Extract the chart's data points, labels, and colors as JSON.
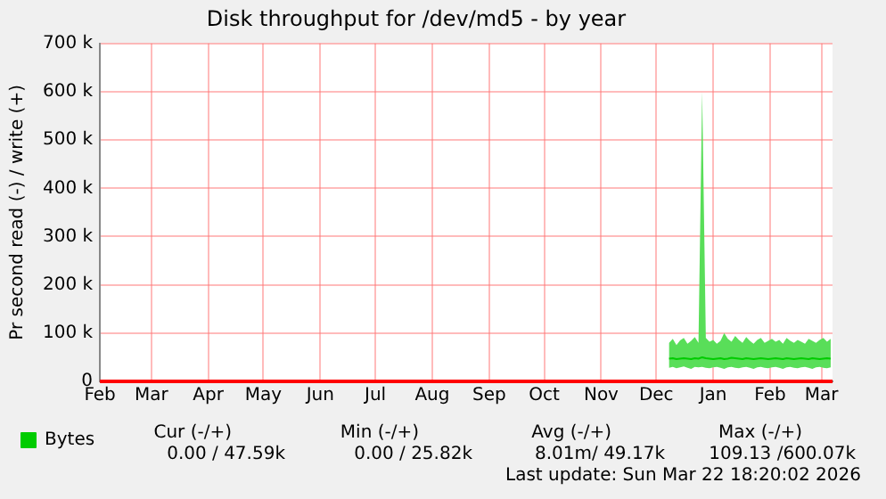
{
  "chart_data": {
    "type": "line",
    "title": "Disk throughput for /dev/md5 - by year",
    "ylabel": "Pr second read (-) / write (+)",
    "xlim": [
      "2025-02-01",
      "2026-03-07"
    ],
    "xticks": [
      {
        "value": "2025-02-01",
        "label": "Feb"
      },
      {
        "value": "2025-03-01",
        "label": "Mar"
      },
      {
        "value": "2025-04-01",
        "label": "Apr"
      },
      {
        "value": "2025-05-01",
        "label": "May"
      },
      {
        "value": "2025-06-01",
        "label": "Jun"
      },
      {
        "value": "2025-07-01",
        "label": "Jul"
      },
      {
        "value": "2025-08-01",
        "label": "Aug"
      },
      {
        "value": "2025-09-01",
        "label": "Sep"
      },
      {
        "value": "2025-10-01",
        "label": "Oct"
      },
      {
        "value": "2025-11-01",
        "label": "Nov"
      },
      {
        "value": "2025-12-01",
        "label": "Dec"
      },
      {
        "value": "2026-01-01",
        "label": "Jan"
      },
      {
        "value": "2026-02-01",
        "label": "Feb"
      },
      {
        "value": "2026-03-01",
        "label": "Mar"
      }
    ],
    "ylim": [
      0,
      700000
    ],
    "yticks": [
      {
        "value": 0,
        "label": "0"
      },
      {
        "value": 100000,
        "label": "100 k"
      },
      {
        "value": 200000,
        "label": "200 k"
      },
      {
        "value": 300000,
        "label": "300 k"
      },
      {
        "value": 400000,
        "label": "400 k"
      },
      {
        "value": 500000,
        "label": "500 k"
      },
      {
        "value": 600000,
        "label": "600 k"
      },
      {
        "value": 700000,
        "label": "700 k"
      }
    ],
    "grid": true,
    "legend": "bottom",
    "marker": "none",
    "line_style": "solid",
    "ref_lines": [
      {
        "axis": "y",
        "value": 0,
        "color": "#ff0000"
      }
    ],
    "series": [
      {
        "name": "Bytes",
        "color": "#00cc00",
        "x": [
          "2025-12-08",
          "2025-12-10",
          "2025-12-12",
          "2025-12-14",
          "2025-12-16",
          "2025-12-18",
          "2025-12-20",
          "2025-12-22",
          "2025-12-24",
          "2025-12-26",
          "2025-12-28",
          "2025-12-30",
          "2026-01-01",
          "2026-01-03",
          "2026-01-05",
          "2026-01-07",
          "2026-01-09",
          "2026-01-11",
          "2026-01-13",
          "2026-01-15",
          "2026-01-17",
          "2026-01-19",
          "2026-01-21",
          "2026-01-23",
          "2026-01-25",
          "2026-01-27",
          "2026-01-29",
          "2026-01-31",
          "2026-02-02",
          "2026-02-04",
          "2026-02-06",
          "2026-02-08",
          "2026-02-10",
          "2026-02-12",
          "2026-02-14",
          "2026-02-16",
          "2026-02-18",
          "2026-02-20",
          "2026-02-22",
          "2026-02-24",
          "2026-02-26",
          "2026-02-28",
          "2026-03-02",
          "2026-03-04",
          "2026-03-06"
        ],
        "values": [
          47000,
          48000,
          46000,
          47000,
          48000,
          47000,
          46000,
          48000,
          47000,
          50000,
          48000,
          47000,
          46000,
          47000,
          48000,
          46000,
          47000,
          49000,
          48000,
          47000,
          46000,
          48000,
          47000,
          46000,
          47000,
          48000,
          47000,
          46000,
          47000,
          48000,
          47000,
          46000,
          48000,
          47000,
          46000,
          47000,
          48000,
          47000,
          46000,
          48000,
          47000,
          46000,
          47000,
          48000,
          47000
        ],
        "lower": [
          28000,
          30000,
          27000,
          29000,
          31000,
          28000,
          26000,
          30000,
          29000,
          30000,
          28000,
          27000,
          29000,
          30000,
          28000,
          26000,
          29000,
          30000,
          28000,
          27000,
          29000,
          30000,
          28000,
          26000,
          29000,
          30000,
          28000,
          27000,
          29000,
          30000,
          28000,
          26000,
          29000,
          30000,
          28000,
          27000,
          29000,
          30000,
          28000,
          26000,
          29000,
          30000,
          28000,
          27000,
          29000
        ],
        "upper": [
          80000,
          88000,
          75000,
          85000,
          90000,
          78000,
          84000,
          92000,
          80000,
          600000,
          90000,
          82000,
          86000,
          78000,
          84000,
          100000,
          88000,
          82000,
          94000,
          86000,
          80000,
          92000,
          84000,
          78000,
          86000,
          90000,
          80000,
          84000,
          88000,
          82000,
          86000,
          78000,
          90000,
          84000,
          80000,
          86000,
          82000,
          78000,
          88000,
          84000,
          80000,
          86000,
          90000,
          82000,
          88000
        ]
      }
    ],
    "annotations": [
      "Cur (-/+)",
      "Min (-/+)",
      "Avg (-/+)",
      "Max (-/+)",
      "0.00 / 47.59k",
      "0.00 / 25.82k",
      "8.01m/ 49.17k",
      "109.13 /600.07k",
      "Last update: Sun Mar 22 18:20:02 2026"
    ]
  }
}
